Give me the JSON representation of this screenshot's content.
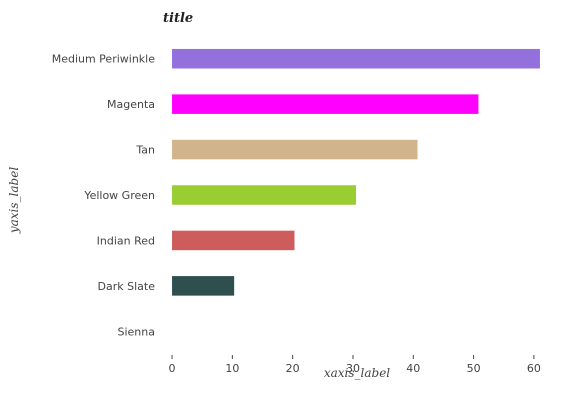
{
  "chart_data": {
    "type": "bar",
    "orientation": "horizontal",
    "title": "title",
    "xlabel": "xaxis_label",
    "ylabel": "yaxis_label",
    "categories": [
      "Sienna",
      "Dark Slate",
      "Indian Red",
      "Yellow Green",
      "Tan",
      "Magenta",
      "Medium Periwinkle"
    ],
    "values": [
      0,
      10.3,
      20.3,
      30.5,
      40.7,
      50.8,
      61
    ],
    "colors": [
      "#a0522d",
      "#2f4f4f",
      "#cd5c5c",
      "#9acd32",
      "#d2b48c",
      "#ff00ff",
      "#9370db"
    ],
    "xlim": [
      -1.5,
      63
    ],
    "xticks": [
      0,
      10,
      20,
      30,
      40,
      50,
      60
    ],
    "grid": false,
    "legend": false
  }
}
